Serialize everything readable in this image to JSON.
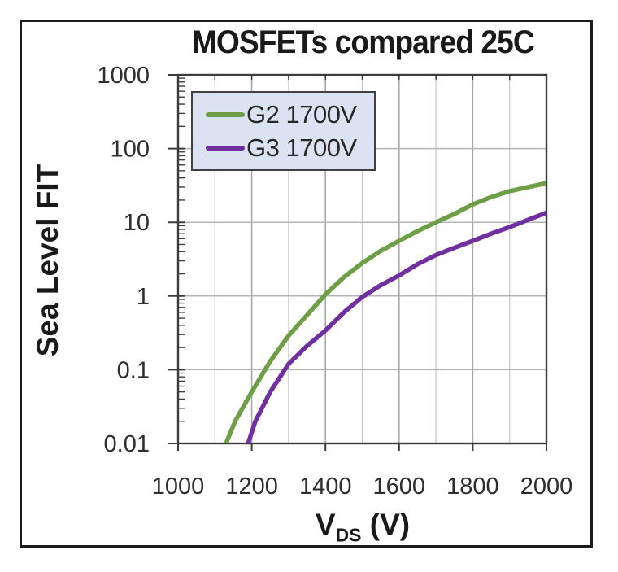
{
  "window": {
    "background": "#ffffff",
    "frame_border_color": "#1b1b1b"
  },
  "chart_data": {
    "type": "line",
    "title": "MOSFETs compared 25C",
    "ylabel": "Sea Level FIT",
    "xlabel": {
      "base": "V",
      "subscript": "DS",
      "unit": " (V)"
    },
    "x_axis": {
      "scale": "linear",
      "min": 1000,
      "max": 2000,
      "major_tick_step": 200,
      "minor_grid_step": 100,
      "tick_labels": [
        "1000",
        "1200",
        "1400",
        "1600",
        "1800",
        "2000"
      ]
    },
    "y_axis": {
      "scale": "log",
      "min": 0.01,
      "max": 1000,
      "tick_labels": [
        "1000",
        "100",
        "10",
        "1",
        "0.1",
        "0.01"
      ]
    },
    "grid": "on",
    "legend": {
      "position": "top-left",
      "background": "#dbe3f2",
      "border_color": "#404040",
      "entries": [
        "G2 1700V",
        "G3 1700V"
      ]
    },
    "series": [
      {
        "name": "G2 1700V",
        "color": "#6e9e45",
        "points": [
          [
            1130,
            0.01
          ],
          [
            1155,
            0.02
          ],
          [
            1200,
            0.05
          ],
          [
            1250,
            0.13
          ],
          [
            1300,
            0.29
          ],
          [
            1350,
            0.55
          ],
          [
            1400,
            1.05
          ],
          [
            1450,
            1.8
          ],
          [
            1500,
            2.8
          ],
          [
            1550,
            4.1
          ],
          [
            1600,
            5.6
          ],
          [
            1650,
            7.6
          ],
          [
            1700,
            10
          ],
          [
            1750,
            13
          ],
          [
            1800,
            17.5
          ],
          [
            1850,
            22
          ],
          [
            1900,
            26.5
          ],
          [
            1950,
            30
          ],
          [
            2000,
            34
          ]
        ]
      },
      {
        "name": "G3 1700V",
        "color": "#7030a0",
        "points": [
          [
            1190,
            0.01
          ],
          [
            1210,
            0.02
          ],
          [
            1250,
            0.05
          ],
          [
            1300,
            0.12
          ],
          [
            1350,
            0.21
          ],
          [
            1400,
            0.34
          ],
          [
            1450,
            0.6
          ],
          [
            1500,
            0.97
          ],
          [
            1550,
            1.4
          ],
          [
            1600,
            1.9
          ],
          [
            1650,
            2.7
          ],
          [
            1700,
            3.6
          ],
          [
            1750,
            4.5
          ],
          [
            1800,
            5.6
          ],
          [
            1850,
            7.0
          ],
          [
            1900,
            8.6
          ],
          [
            1950,
            10.8
          ],
          [
            2000,
            13.5
          ]
        ]
      }
    ]
  }
}
